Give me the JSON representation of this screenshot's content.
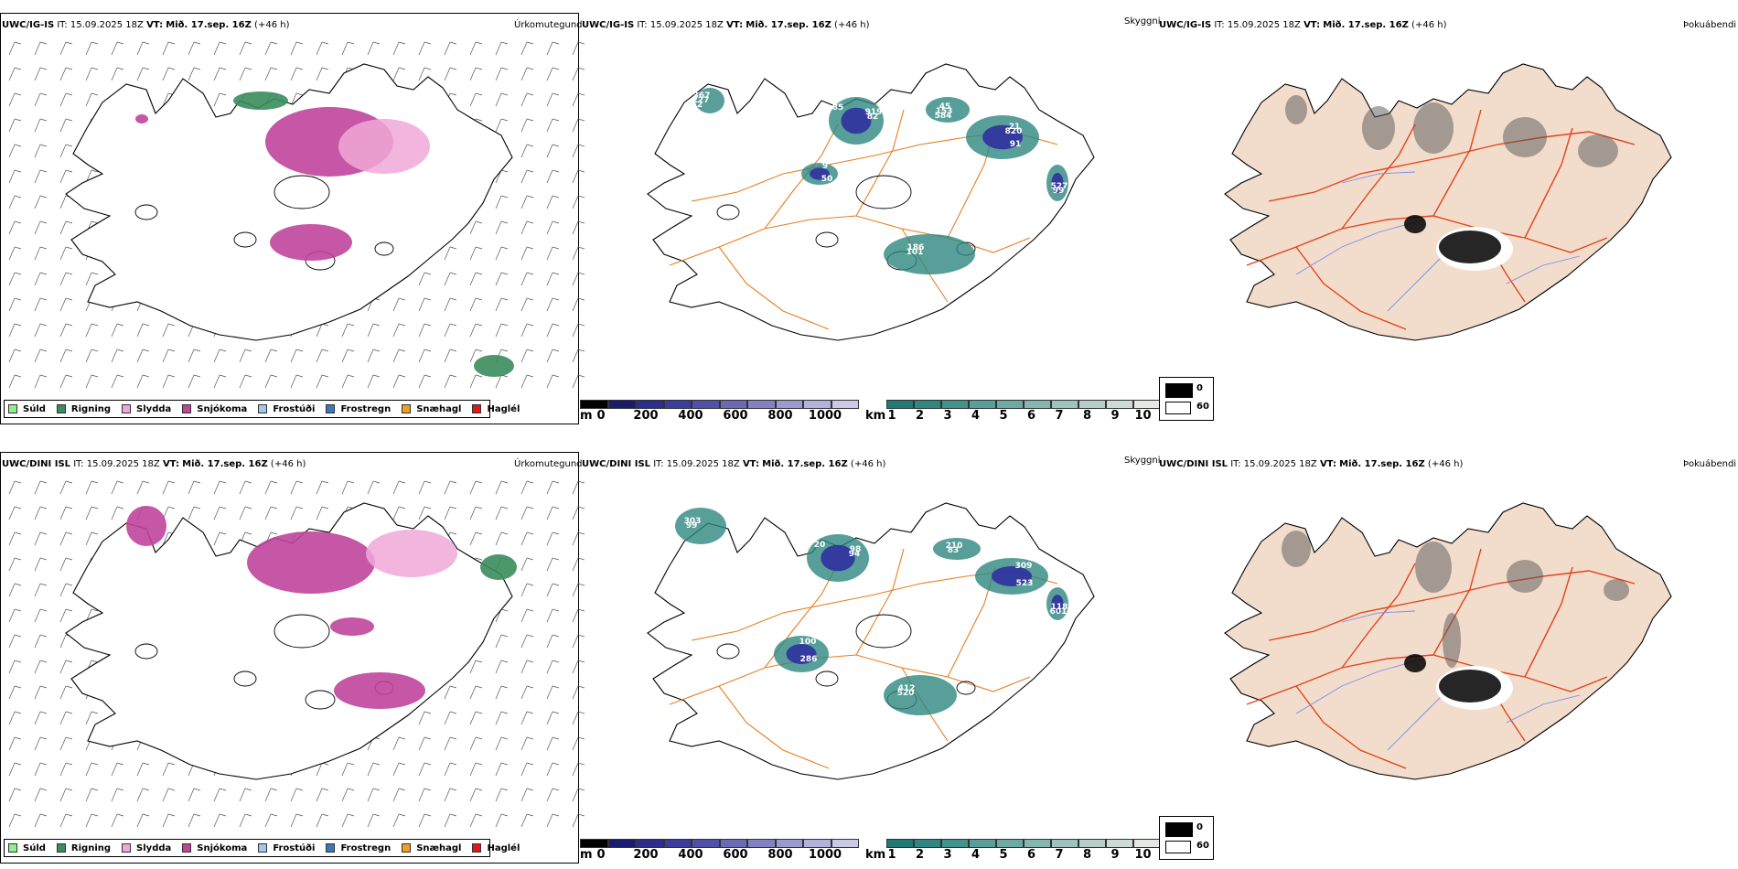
{
  "rows": [
    {
      "precip": {
        "model": "UWC/IG-IS",
        "it_label": "IT:",
        "it": "15.09.2025 18Z",
        "vt_label": "VT:",
        "vt": "Mið. 17.sep. 16Z",
        "lead": "(+46 h)",
        "right": "Úrkomutegund"
      },
      "cloud": {
        "model": "UWC/IG-IS",
        "it_label": "IT:",
        "it": "15.09.2025 18Z",
        "vt_label": "VT:",
        "vt": "Mið. 17.sep. 16Z",
        "lead": "(+46 h)",
        "right": "Skyggni"
      },
      "fog": {
        "model": "UWC/IG-IS",
        "it_label": "IT:",
        "it": "15.09.2025 18Z",
        "vt_label": "VT:",
        "vt": "Mið. 17.sep. 16Z",
        "lead": "(+46 h)",
        "right": "Þokuábendi"
      },
      "cloud_labels": [
        "85",
        "45",
        "91",
        "367",
        "50",
        "186",
        "527",
        "919",
        "153",
        "21",
        "227",
        "65",
        "101",
        "99",
        "82",
        "584",
        "820",
        "2",
        "9"
      ]
    },
    {
      "precip": {
        "model": "UWC/DINI ISL",
        "it_label": "IT:",
        "it": "15.09.2025 18Z",
        "vt_label": "VT:",
        "vt": "Mið. 17.sep. 16Z",
        "lead": "(+46 h)",
        "right": "Úrkomutegund"
      },
      "cloud": {
        "model": "UWC/DINI ISL",
        "it_label": "IT:",
        "it": "15.09.2025 18Z",
        "vt_label": "VT:",
        "vt": "Mið. 17.sep. 16Z",
        "lead": "(+46 h)",
        "right": "Skyggni"
      },
      "fog": {
        "model": "UWC/DINI ISL",
        "it_label": "IT:",
        "it": "15.09.2025 18Z",
        "vt_label": "VT:",
        "vt": "Mið. 17.sep. 16Z",
        "lead": "(+46 h)",
        "right": "Þokuábendi"
      },
      "cloud_labels": [
        "20",
        "210",
        "523",
        "303",
        "286",
        "412",
        "118",
        "98",
        "83",
        "309",
        "99",
        "100",
        "520",
        "601",
        "94"
      ]
    }
  ],
  "precip_legend": [
    {
      "label": "Súld",
      "color": "#90ee90"
    },
    {
      "label": "Rigning",
      "color": "#3a8c5c"
    },
    {
      "label": "Slydda",
      "color": "#f0a8d8"
    },
    {
      "label": "Snjókoma",
      "color": "#c0449c"
    },
    {
      "label": "Frostúði",
      "color": "#9fc8ee"
    },
    {
      "label": "Frostregn",
      "color": "#3a78b8"
    },
    {
      "label": "Snæhagl",
      "color": "#f0a020"
    },
    {
      "label": "Haglél",
      "color": "#e01818"
    }
  ],
  "cloudbase_scale": {
    "unit": "m",
    "ticks": [
      "0",
      "200",
      "400",
      "600",
      "800",
      "1000"
    ],
    "colors": [
      "#000000",
      "#1a1a6e",
      "#2c2c8c",
      "#3c3c9e",
      "#5050aa",
      "#6a6ab6",
      "#8282c2",
      "#9a9ace",
      "#b2b2da",
      "#cacae6"
    ]
  },
  "visibility_scale": {
    "unit": "km",
    "ticks": [
      "1",
      "2",
      "3",
      "4",
      "5",
      "6",
      "7",
      "8",
      "9",
      "10"
    ],
    "colors": [
      "#1f7a74",
      "#2e8780",
      "#41948c",
      "#579f98",
      "#6eaaa4",
      "#86b6b0",
      "#9ec2bd",
      "#b6cec9",
      "#cedad6",
      "#e6e8e6"
    ]
  },
  "fog_scale": {
    "ticks": [
      "0",
      "60"
    ]
  },
  "colors": {
    "coast": "#000000",
    "roads": "#e67e22",
    "fog_land": "#f2dccb",
    "fog_road": "#e2441c",
    "fog_river": "#7a8cf0",
    "snow": "#c0449c",
    "sleet": "#f0a8d8",
    "rain": "#3a8c5c",
    "deep": "#3030a0",
    "teal": "#2e8780"
  }
}
